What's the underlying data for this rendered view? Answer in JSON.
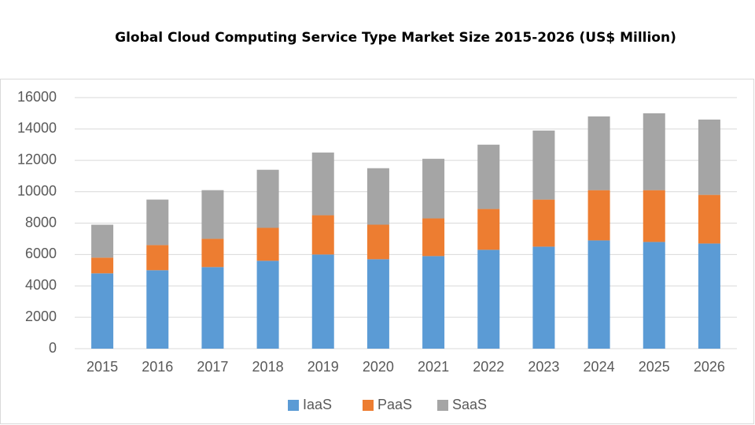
{
  "chart_data": {
    "type": "stacked_bar",
    "title": "Global Cloud Computing Service Type Market Size 2015-2026 (US$ Million)",
    "categories": [
      "2015",
      "2016",
      "2017",
      "2018",
      "2019",
      "2020",
      "2021",
      "2022",
      "2023",
      "2024",
      "2025",
      "2026"
    ],
    "series": [
      {
        "name": "IaaS",
        "color": "#5b9bd5",
        "values": [
          4800,
          5000,
          5200,
          5600,
          6000,
          5700,
          5900,
          6300,
          6500,
          6900,
          6800,
          6700
        ]
      },
      {
        "name": "PaaS",
        "color": "#ed7d31",
        "values": [
          1000,
          1600,
          1800,
          2100,
          2500,
          2200,
          2400,
          2600,
          3000,
          3200,
          3300,
          3100
        ]
      },
      {
        "name": "SaaS",
        "color": "#a5a5a5",
        "values": [
          2100,
          2900,
          3100,
          3700,
          4000,
          3600,
          3800,
          4100,
          4400,
          4700,
          4900,
          4800
        ]
      }
    ],
    "ylim": [
      0,
      16000
    ],
    "yticks": [
      0,
      2000,
      4000,
      6000,
      8000,
      10000,
      12000,
      14000,
      16000
    ],
    "grid": true,
    "legend": "bottom"
  }
}
